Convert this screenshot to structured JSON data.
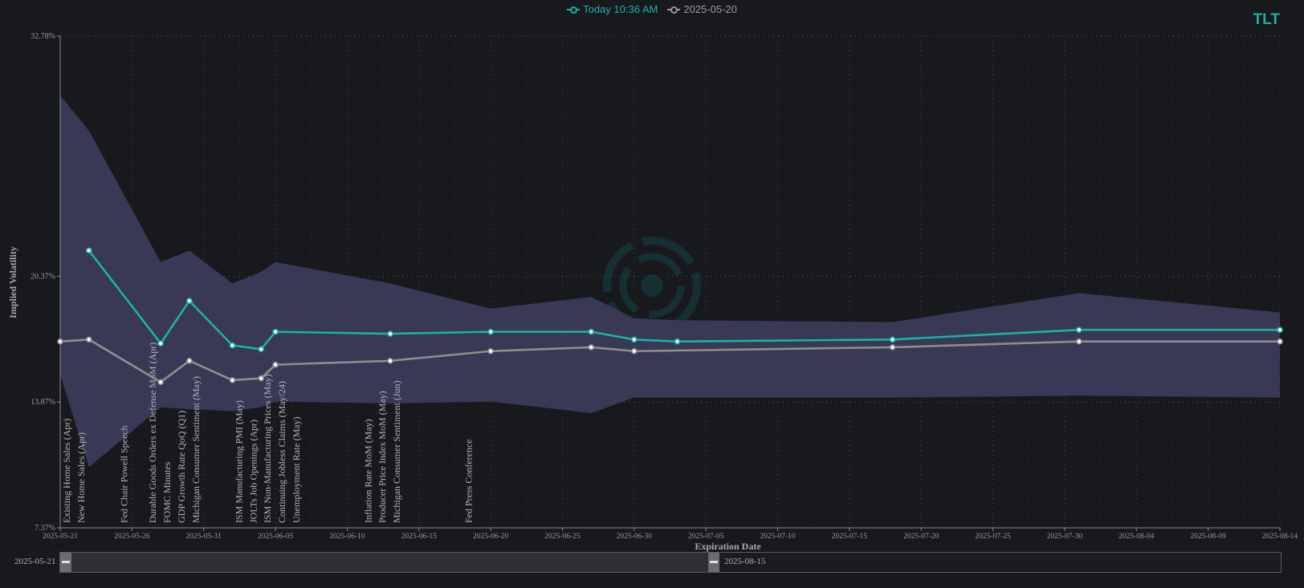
{
  "ticker": "TLT",
  "legend": [
    {
      "label": "Today 10:36 AM",
      "color": "#19b3a6"
    },
    {
      "label": "2025-05-20",
      "color": "#9a9a9a"
    }
  ],
  "slider": {
    "start_label": "2025-05-21",
    "end_label": "2025-08-15",
    "selection_end_fraction": 0.54
  },
  "colors": {
    "band": "#3b3a58",
    "today": "#19b3a6",
    "prior": "#8e8e8e",
    "background": "#18191d"
  },
  "chart_data": {
    "type": "line",
    "xlabel": "Expiration Date",
    "ylabel": "Implied Volatility",
    "xlim": [
      "2025-05-21",
      "2025-08-14"
    ],
    "ylim": [
      7.37,
      32.78
    ],
    "y_ticks": [
      "7.37%",
      "13.87%",
      "20.37%",
      "32.78%"
    ],
    "y_tick_values": [
      7.37,
      13.87,
      20.37,
      32.78
    ],
    "x_ticks": [
      "2025-05-21",
      "2025-05-26",
      "2025-05-31",
      "2025-06-05",
      "2025-06-10",
      "2025-06-15",
      "2025-06-20",
      "2025-06-25",
      "2025-06-30",
      "2025-07-05",
      "2025-07-10",
      "2025-07-15",
      "2025-07-20",
      "2025-07-25",
      "2025-07-30",
      "2025-08-04",
      "2025-08-09",
      "2025-08-14"
    ],
    "grid": true,
    "band": {
      "upper": [
        [
          "2025-05-21",
          29.7
        ],
        [
          "2025-05-23",
          27.9
        ],
        [
          "2025-05-28",
          21.1
        ],
        [
          "2025-05-30",
          21.7
        ],
        [
          "2025-06-02",
          20.0
        ],
        [
          "2025-06-04",
          20.6
        ],
        [
          "2025-06-05",
          21.1
        ],
        [
          "2025-06-13",
          20.0
        ],
        [
          "2025-06-20",
          18.7
        ],
        [
          "2025-06-27",
          19.3
        ],
        [
          "2025-06-30",
          18.2
        ],
        [
          "2025-07-03",
          18.1
        ],
        [
          "2025-07-18",
          18.0
        ],
        [
          "2025-07-31",
          19.5
        ],
        [
          "2025-08-14",
          18.5
        ]
      ],
      "lower": [
        [
          "2025-05-21",
          15.3
        ],
        [
          "2025-05-23",
          10.5
        ],
        [
          "2025-05-28",
          13.6
        ],
        [
          "2025-05-30",
          13.5
        ],
        [
          "2025-06-02",
          13.4
        ],
        [
          "2025-06-04",
          13.6
        ],
        [
          "2025-06-05",
          13.9
        ],
        [
          "2025-06-13",
          13.8
        ],
        [
          "2025-06-20",
          13.9
        ],
        [
          "2025-06-27",
          13.3
        ],
        [
          "2025-06-30",
          14.1
        ],
        [
          "2025-07-03",
          14.1
        ],
        [
          "2025-07-18",
          14.1
        ],
        [
          "2025-07-31",
          14.2
        ],
        [
          "2025-08-14",
          14.1
        ]
      ]
    },
    "series": [
      {
        "name": "Today 10:36 AM",
        "points": [
          [
            "2025-05-23",
            21.7
          ],
          [
            "2025-05-28",
            16.9
          ],
          [
            "2025-05-30",
            19.1
          ],
          [
            "2025-06-02",
            16.8
          ],
          [
            "2025-06-04",
            16.6
          ],
          [
            "2025-06-05",
            17.5
          ],
          [
            "2025-06-13",
            17.4
          ],
          [
            "2025-06-20",
            17.5
          ],
          [
            "2025-06-27",
            17.5
          ],
          [
            "2025-06-30",
            17.1
          ],
          [
            "2025-07-03",
            17.0
          ],
          [
            "2025-07-18",
            17.1
          ],
          [
            "2025-07-31",
            17.6
          ],
          [
            "2025-08-14",
            17.6
          ]
        ]
      },
      {
        "name": "2025-05-20",
        "points": [
          [
            "2025-05-21",
            17.0
          ],
          [
            "2025-05-23",
            17.1
          ],
          [
            "2025-05-28",
            14.9
          ],
          [
            "2025-05-30",
            16.0
          ],
          [
            "2025-06-02",
            15.0
          ],
          [
            "2025-06-04",
            15.1
          ],
          [
            "2025-06-05",
            15.8
          ],
          [
            "2025-06-13",
            16.0
          ],
          [
            "2025-06-20",
            16.5
          ],
          [
            "2025-06-27",
            16.7
          ],
          [
            "2025-06-30",
            16.5
          ],
          [
            "2025-07-18",
            16.7
          ],
          [
            "2025-07-31",
            17.0
          ],
          [
            "2025-08-14",
            17.0
          ]
        ]
      }
    ],
    "events": [
      {
        "date": "2025-05-21",
        "label": "Existing Home Sales (Apr)"
      },
      {
        "date": "2025-05-22",
        "label": "New Home Sales (Apr)"
      },
      {
        "date": "2025-05-25",
        "label": "Fed Chair Powell Speech"
      },
      {
        "date": "2025-05-27",
        "label": "Durable Goods Orders ex Defense MoM (Apr)"
      },
      {
        "date": "2025-05-28",
        "label": "FOMC Minutes"
      },
      {
        "date": "2025-05-29",
        "label": "GDP Growth Rate QoQ (Q1)"
      },
      {
        "date": "2025-05-30",
        "label": "Michigan Consumer Sentiment (May)"
      },
      {
        "date": "2025-06-02",
        "label": "ISM Manufacturing PMI (May)"
      },
      {
        "date": "2025-06-03",
        "label": "JOLTs Job Openings (Apr)"
      },
      {
        "date": "2025-06-04",
        "label": "ISM Non-Manufacturing Prices (May)"
      },
      {
        "date": "2025-06-05",
        "label": "Continuing Jobless Claims (May/24)"
      },
      {
        "date": "2025-06-06",
        "label": "Unemployment Rate (May)"
      },
      {
        "date": "2025-06-11",
        "label": "Inflation Rate MoM (May)"
      },
      {
        "date": "2025-06-12",
        "label": "Producer Price Index MoM (May)"
      },
      {
        "date": "2025-06-13",
        "label": "Michigan Consumer Sentiment (Jun)"
      },
      {
        "date": "2025-06-18",
        "label": "Fed Press Conference"
      }
    ],
    "watermark": "SPOTGAMMA"
  }
}
